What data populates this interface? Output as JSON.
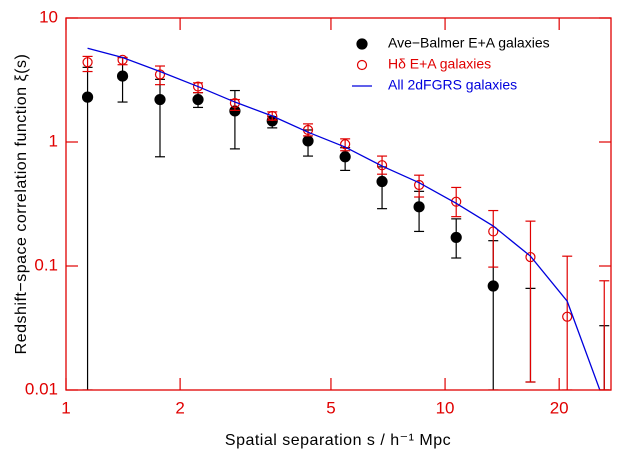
{
  "chart_data": {
    "type": "scatter",
    "x_label": "Spatial separation s / h⁻¹ Mpc",
    "y_label": "Redshift−space correlation function ξ(s)",
    "x_scale": "log",
    "y_scale": "log",
    "xlim": [
      1,
      27.4
    ],
    "ylim": [
      0.01,
      10
    ],
    "xticks": [
      1,
      2,
      5,
      10,
      20
    ],
    "yticks": [
      0.01,
      0.1,
      1,
      10
    ],
    "axis_color": "#e00000",
    "legend": "upper right",
    "x": [
      1.14,
      1.41,
      1.77,
      2.23,
      2.79,
      3.5,
      4.35,
      5.45,
      6.82,
      8.54,
      10.7,
      13.4,
      16.8,
      21.0,
      26.3
    ],
    "series": [
      {
        "name": "Ave−Balmer E+A galaxies",
        "color": "#000000",
        "marker": "filled",
        "values": [
          2.3,
          3.4,
          2.2,
          2.2,
          1.78,
          1.48,
          1.02,
          0.76,
          0.48,
          0.3,
          0.17,
          0.069,
          null,
          null,
          null
        ],
        "lower": [
          0.01,
          2.1,
          0.76,
          1.9,
          0.88,
          1.3,
          0.77,
          0.59,
          0.29,
          0.19,
          0.116,
          0.01,
          0.0116,
          null,
          0.01
        ],
        "upper": [
          4.0,
          4.8,
          3.2,
          2.5,
          2.6,
          1.6,
          1.25,
          0.9,
          0.63,
          0.4,
          0.24,
          0.16,
          0.066,
          null,
          0.033
        ]
      },
      {
        "name": "Hδ E+A galaxies",
        "color": "#e00000",
        "marker": "open",
        "values": [
          4.4,
          4.6,
          3.5,
          2.8,
          2.06,
          1.62,
          1.25,
          0.96,
          0.65,
          0.45,
          0.33,
          0.19,
          0.118,
          0.039,
          null
        ],
        "lower": [
          3.7,
          4.2,
          2.9,
          2.5,
          1.8,
          1.5,
          1.12,
          0.85,
          0.55,
          0.36,
          0.25,
          0.098,
          0.0116,
          0.01,
          0.01
        ],
        "upper": [
          4.9,
          4.8,
          4.1,
          3.0,
          2.2,
          1.75,
          1.4,
          1.06,
          0.77,
          0.54,
          0.43,
          0.28,
          0.23,
          0.12,
          0.076
        ]
      },
      {
        "name": "All 2dFGRS galaxies",
        "color": "#0000dd",
        "marker": "line",
        "values": [
          5.7,
          4.8,
          3.7,
          2.8,
          2.1,
          1.62,
          1.2,
          0.91,
          0.64,
          0.47,
          0.32,
          0.21,
          0.12,
          0.052,
          0.008
        ]
      }
    ]
  }
}
